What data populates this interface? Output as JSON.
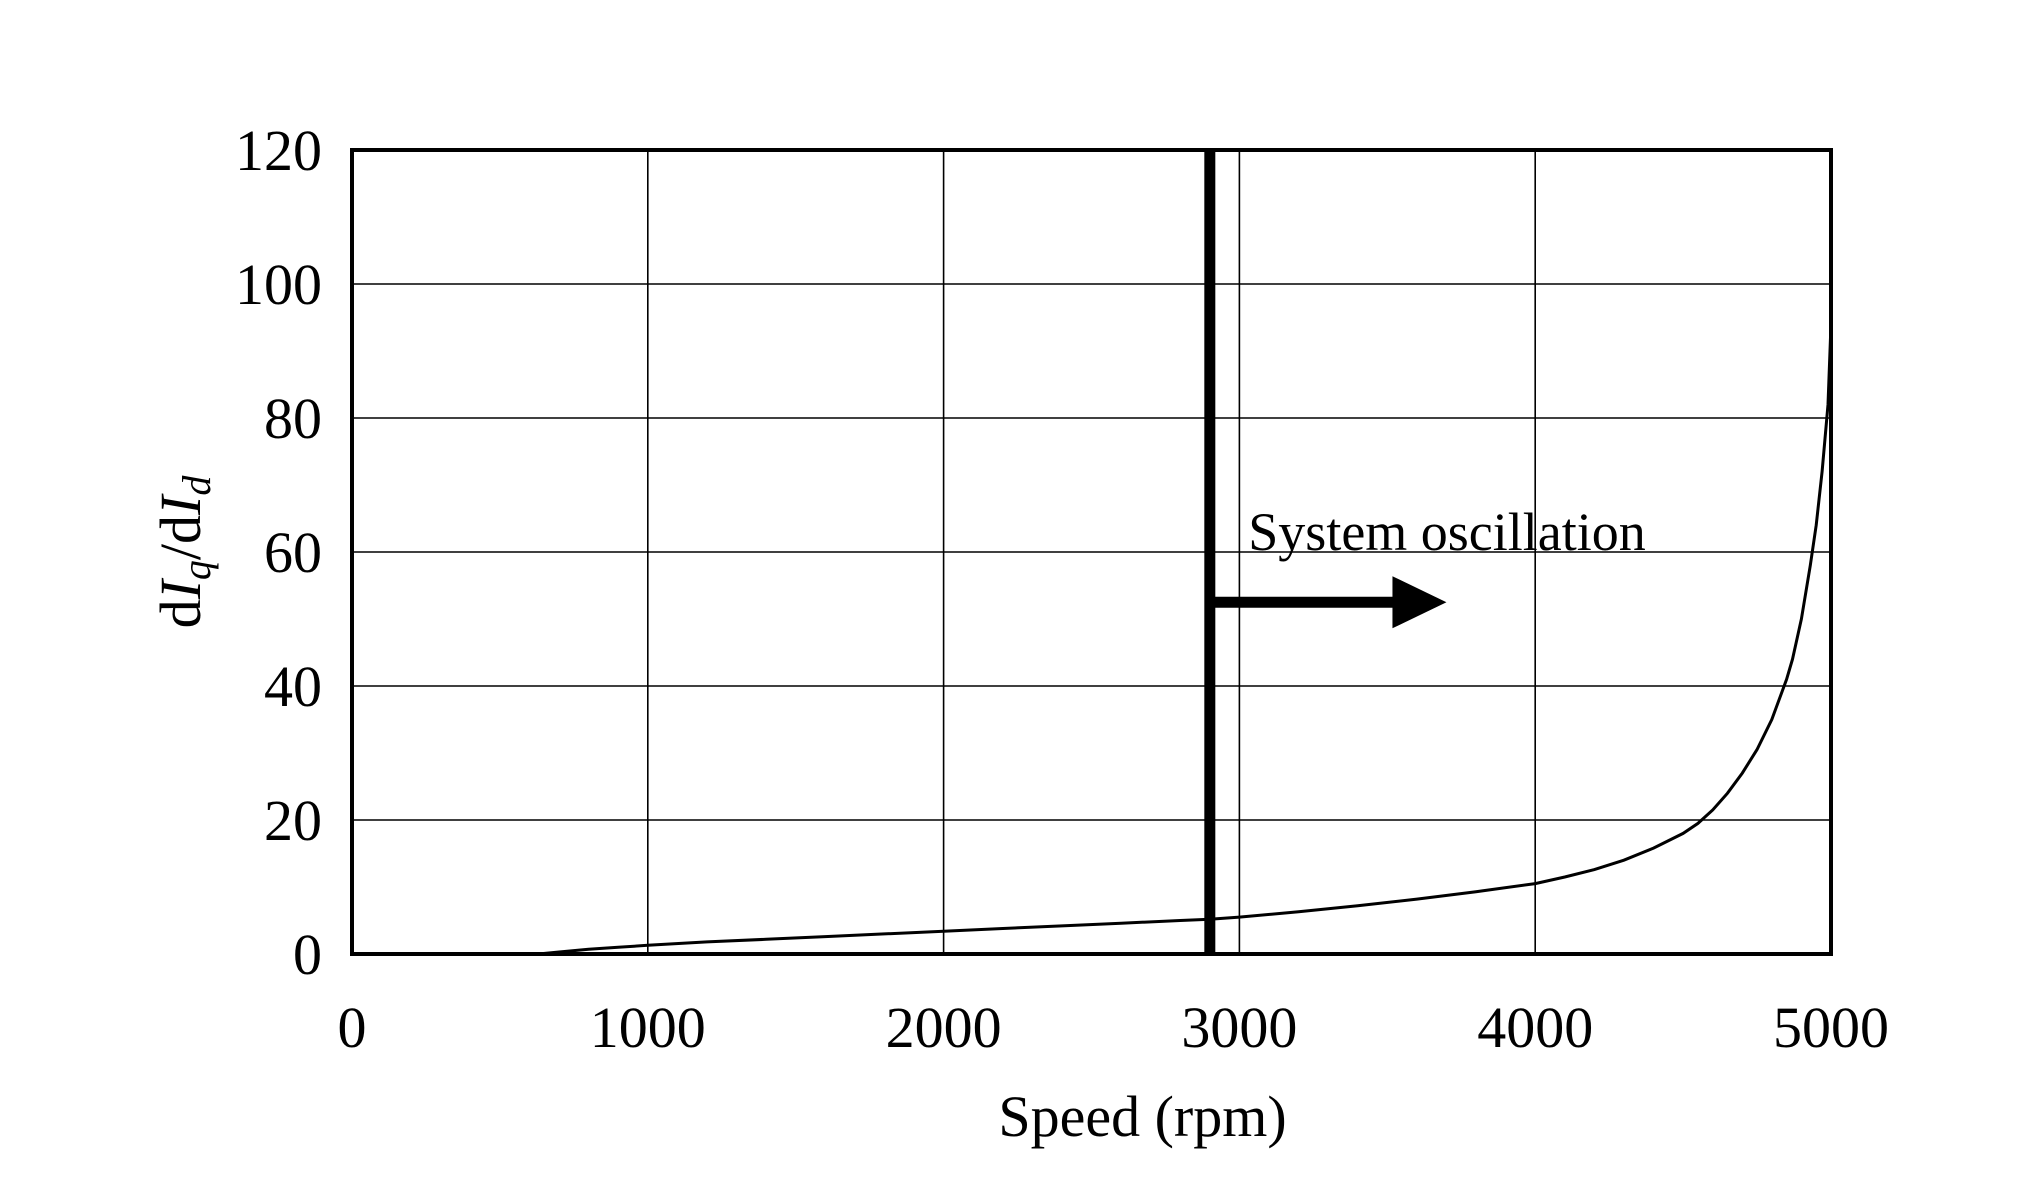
{
  "chart_data": {
    "type": "line",
    "xlabel": "Speed (rpm)",
    "ylabel_parts": [
      "d",
      "I",
      "q",
      "/d",
      "I",
      "d"
    ],
    "xlim": [
      0,
      5000
    ],
    "ylim": [
      0,
      120
    ],
    "xticks": [
      0,
      1000,
      2000,
      3000,
      4000,
      5000
    ],
    "yticks": [
      0,
      20,
      40,
      60,
      80,
      100,
      120
    ],
    "grid": true,
    "series": [
      {
        "x": [
          630,
          700,
          800,
          900,
          1000,
          1200,
          1400,
          1600,
          1800,
          2000,
          2200,
          2400,
          2600,
          2800,
          2900,
          3000,
          3200,
          3400,
          3600,
          3800,
          4000,
          4100,
          4200,
          4300,
          4400,
          4500,
          4550,
          4600,
          4650,
          4700,
          4750,
          4800,
          4850,
          4870,
          4900,
          4930,
          4950,
          4970,
          4990,
          5000
        ],
        "y": [
          0,
          0.3,
          0.7,
          1.0,
          1.3,
          1.8,
          2.2,
          2.6,
          3.0,
          3.4,
          3.8,
          4.2,
          4.6,
          5.0,
          5.2,
          5.5,
          6.3,
          7.2,
          8.2,
          9.3,
          10.5,
          11.5,
          12.6,
          14.0,
          15.8,
          18.0,
          19.5,
          21.5,
          24.0,
          27.0,
          30.5,
          35.0,
          41.0,
          44.0,
          50.0,
          58.0,
          64.0,
          72.0,
          82.0,
          94.0
        ]
      }
    ],
    "threshold_x": 2900,
    "annotation": {
      "text": "System oscillation",
      "text_x": 3030,
      "text_y": 63,
      "arrow_from": [
        2900,
        52.5
      ],
      "arrow_to": [
        3700,
        52.5
      ]
    }
  }
}
